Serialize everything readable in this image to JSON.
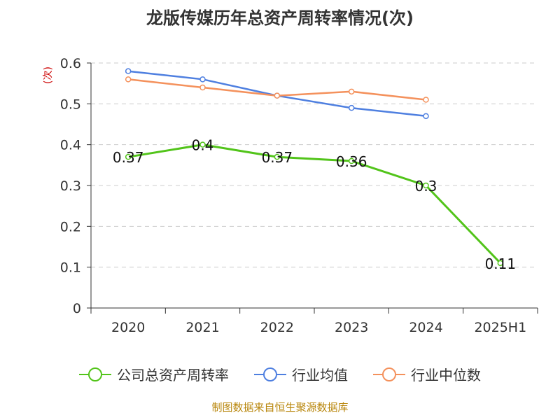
{
  "chart_data": {
    "type": "line",
    "title": "龙版传媒历年总资产周转率情况(次)",
    "ylabel": "(次)",
    "xlabel": "",
    "categories": [
      "2020",
      "2021",
      "2022",
      "2023",
      "2024",
      "2025H1"
    ],
    "ylim": [
      0,
      0.6
    ],
    "yticks": [
      0,
      0.1,
      0.2,
      0.3,
      0.4,
      0.5,
      0.6
    ],
    "grid": true,
    "legend_position": "bottom",
    "series": [
      {
        "name": "公司总资产周转率",
        "color": "#52c41a",
        "values": [
          0.37,
          0.4,
          0.37,
          0.36,
          0.3,
          0.11
        ],
        "show_labels": true
      },
      {
        "name": "行业均值",
        "color": "#4e7fe0",
        "values": [
          0.58,
          0.56,
          0.52,
          0.49,
          0.47,
          null
        ],
        "show_labels": false
      },
      {
        "name": "行业中位数",
        "color": "#f4915c",
        "values": [
          0.56,
          0.54,
          0.52,
          0.53,
          0.51,
          null
        ],
        "show_labels": false
      }
    ]
  },
  "source": "制图数据来自恒生聚源数据库"
}
